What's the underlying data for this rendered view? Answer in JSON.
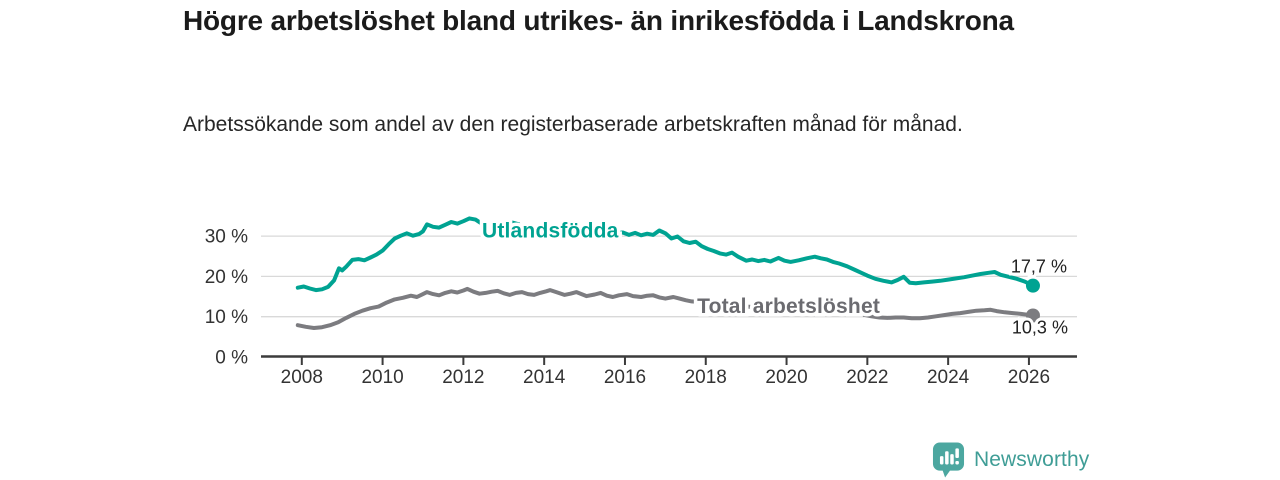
{
  "header": {
    "title": "Högre arbetslöshet bland utrikes- än inrikesfödda i Landskrona",
    "subtitle": "Arbetssökande som andel av den registerbaserade arbetskraften månad för månad."
  },
  "chart_data": {
    "type": "line",
    "title": "Högre arbetslöshet bland utrikes- än inrikesfödda i Landskrona",
    "subtitle": "Arbetssökande som andel av den registerbaserade arbetskraften månad för månad.",
    "xlabel": "",
    "ylabel": "",
    "xlim": [
      2006.99,
      2027.19
    ],
    "ylim": [
      0,
      36
    ],
    "grid": "horizontal-only",
    "legend_position": "inline-labels",
    "x_ticks": [
      2008,
      2010,
      2012,
      2014,
      2016,
      2018,
      2020,
      2022,
      2024,
      2026
    ],
    "x_tick_labels": [
      "2008",
      "2010",
      "2012",
      "2014",
      "2016",
      "2018",
      "2020",
      "2022",
      "2024",
      "2026"
    ],
    "y_ticks": [
      0,
      10,
      20,
      30
    ],
    "y_tick_labels": [
      "0 %",
      "10 %",
      "20 %",
      "30 %"
    ],
    "colors": {
      "grid": "#d9d9d9",
      "axis": "#3c3c3c",
      "tick_text": "#333333",
      "value_label_text": "#222222"
    },
    "series": [
      {
        "name": "Utlandsfödda",
        "color": "#00a392",
        "label_color": "#00a392",
        "inline_label": {
          "year": 2014.15,
          "value": 31.4
        },
        "end_label": "17,7 %",
        "end_value": 17.7,
        "end_label_offset": [
          34,
          -13
        ],
        "points": [
          [
            2007.9,
            17.2
          ],
          [
            2008.05,
            17.5
          ],
          [
            2008.2,
            17.0
          ],
          [
            2008.35,
            16.6
          ],
          [
            2008.5,
            16.8
          ],
          [
            2008.65,
            17.4
          ],
          [
            2008.8,
            19.0
          ],
          [
            2008.92,
            22.0
          ],
          [
            2009.0,
            21.5
          ],
          [
            2009.1,
            22.4
          ],
          [
            2009.25,
            24.1
          ],
          [
            2009.4,
            24.3
          ],
          [
            2009.55,
            24.0
          ],
          [
            2009.7,
            24.7
          ],
          [
            2009.85,
            25.4
          ],
          [
            2010.0,
            26.4
          ],
          [
            2010.15,
            28.0
          ],
          [
            2010.3,
            29.4
          ],
          [
            2010.45,
            30.1
          ],
          [
            2010.6,
            30.7
          ],
          [
            2010.75,
            30.1
          ],
          [
            2010.9,
            30.5
          ],
          [
            2011.0,
            31.2
          ],
          [
            2011.1,
            32.9
          ],
          [
            2011.25,
            32.3
          ],
          [
            2011.4,
            32.1
          ],
          [
            2011.55,
            32.8
          ],
          [
            2011.7,
            33.5
          ],
          [
            2011.85,
            33.1
          ],
          [
            2012.0,
            33.7
          ],
          [
            2012.15,
            34.4
          ],
          [
            2012.3,
            34.1
          ],
          [
            2012.45,
            33.1
          ],
          [
            2012.6,
            32.4
          ],
          [
            2012.8,
            32.7
          ],
          [
            2013.0,
            33.2
          ],
          [
            2013.2,
            33.4
          ],
          [
            2013.45,
            32.7
          ],
          [
            2013.7,
            32.1
          ],
          [
            2014.0,
            31.7
          ],
          [
            2014.3,
            31.3
          ],
          [
            2014.6,
            31.0
          ],
          [
            2014.9,
            30.8
          ],
          [
            2015.2,
            30.6
          ],
          [
            2015.5,
            30.4
          ],
          [
            2015.75,
            30.8
          ],
          [
            2015.95,
            30.9
          ],
          [
            2016.1,
            30.3
          ],
          [
            2016.25,
            30.8
          ],
          [
            2016.4,
            30.2
          ],
          [
            2016.55,
            30.6
          ],
          [
            2016.7,
            30.3
          ],
          [
            2016.85,
            31.4
          ],
          [
            2017.0,
            30.7
          ],
          [
            2017.15,
            29.4
          ],
          [
            2017.3,
            29.9
          ],
          [
            2017.45,
            28.7
          ],
          [
            2017.6,
            28.3
          ],
          [
            2017.75,
            28.6
          ],
          [
            2017.9,
            27.5
          ],
          [
            2018.05,
            26.8
          ],
          [
            2018.2,
            26.3
          ],
          [
            2018.35,
            25.7
          ],
          [
            2018.5,
            25.4
          ],
          [
            2018.65,
            25.9
          ],
          [
            2018.8,
            24.9
          ],
          [
            2019.0,
            23.9
          ],
          [
            2019.15,
            24.2
          ],
          [
            2019.3,
            23.8
          ],
          [
            2019.45,
            24.1
          ],
          [
            2019.6,
            23.7
          ],
          [
            2019.8,
            24.6
          ],
          [
            2019.95,
            23.9
          ],
          [
            2020.1,
            23.6
          ],
          [
            2020.3,
            24.0
          ],
          [
            2020.5,
            24.5
          ],
          [
            2020.7,
            24.9
          ],
          [
            2020.85,
            24.5
          ],
          [
            2021.0,
            24.2
          ],
          [
            2021.15,
            23.6
          ],
          [
            2021.3,
            23.2
          ],
          [
            2021.5,
            22.5
          ],
          [
            2021.7,
            21.6
          ],
          [
            2021.85,
            20.9
          ],
          [
            2022.0,
            20.2
          ],
          [
            2022.2,
            19.4
          ],
          [
            2022.4,
            18.9
          ],
          [
            2022.6,
            18.5
          ],
          [
            2022.75,
            19.1
          ],
          [
            2022.9,
            19.9
          ],
          [
            2023.05,
            18.4
          ],
          [
            2023.2,
            18.3
          ],
          [
            2023.4,
            18.5
          ],
          [
            2023.6,
            18.7
          ],
          [
            2023.8,
            18.9
          ],
          [
            2024.0,
            19.2
          ],
          [
            2024.2,
            19.5
          ],
          [
            2024.4,
            19.8
          ],
          [
            2024.6,
            20.2
          ],
          [
            2024.8,
            20.6
          ],
          [
            2025.0,
            20.9
          ],
          [
            2025.15,
            21.1
          ],
          [
            2025.3,
            20.4
          ],
          [
            2025.5,
            19.9
          ],
          [
            2025.7,
            19.4
          ],
          [
            2025.9,
            18.7
          ],
          [
            2026.1,
            17.7
          ]
        ]
      },
      {
        "name": "Total arbetslöshet",
        "color": "#7c7c80",
        "label_color": "#6b6b70",
        "inline_label": {
          "year": 2020.05,
          "value": 12.6
        },
        "end_label": "10,3 %",
        "end_value": 10.3,
        "end_label_offset": [
          35,
          18
        ],
        "points": [
          [
            2007.9,
            7.9
          ],
          [
            2008.1,
            7.5
          ],
          [
            2008.3,
            7.2
          ],
          [
            2008.5,
            7.4
          ],
          [
            2008.7,
            7.9
          ],
          [
            2008.9,
            8.6
          ],
          [
            2009.1,
            9.7
          ],
          [
            2009.3,
            10.7
          ],
          [
            2009.5,
            11.5
          ],
          [
            2009.7,
            12.1
          ],
          [
            2009.9,
            12.5
          ],
          [
            2010.1,
            13.5
          ],
          [
            2010.3,
            14.3
          ],
          [
            2010.5,
            14.7
          ],
          [
            2010.7,
            15.2
          ],
          [
            2010.85,
            14.9
          ],
          [
            2011.0,
            15.6
          ],
          [
            2011.1,
            16.1
          ],
          [
            2011.25,
            15.6
          ],
          [
            2011.4,
            15.3
          ],
          [
            2011.55,
            15.9
          ],
          [
            2011.7,
            16.3
          ],
          [
            2011.85,
            16.0
          ],
          [
            2012.0,
            16.5
          ],
          [
            2012.1,
            16.9
          ],
          [
            2012.25,
            16.2
          ],
          [
            2012.4,
            15.7
          ],
          [
            2012.55,
            15.9
          ],
          [
            2012.7,
            16.2
          ],
          [
            2012.85,
            16.4
          ],
          [
            2013.0,
            15.8
          ],
          [
            2013.15,
            15.4
          ],
          [
            2013.3,
            15.9
          ],
          [
            2013.45,
            16.1
          ],
          [
            2013.6,
            15.6
          ],
          [
            2013.75,
            15.4
          ],
          [
            2013.9,
            15.9
          ],
          [
            2014.05,
            16.3
          ],
          [
            2014.15,
            16.6
          ],
          [
            2014.3,
            16.1
          ],
          [
            2014.5,
            15.4
          ],
          [
            2014.65,
            15.7
          ],
          [
            2014.8,
            16.1
          ],
          [
            2015.05,
            15.1
          ],
          [
            2015.25,
            15.5
          ],
          [
            2015.4,
            15.9
          ],
          [
            2015.55,
            15.2
          ],
          [
            2015.7,
            14.9
          ],
          [
            2015.85,
            15.3
          ],
          [
            2016.05,
            15.6
          ],
          [
            2016.2,
            15.1
          ],
          [
            2016.4,
            14.9
          ],
          [
            2016.55,
            15.2
          ],
          [
            2016.7,
            15.3
          ],
          [
            2016.85,
            14.8
          ],
          [
            2017.0,
            14.5
          ],
          [
            2017.2,
            14.9
          ],
          [
            2017.35,
            14.5
          ],
          [
            2017.5,
            14.1
          ],
          [
            2017.65,
            13.8
          ],
          [
            2017.9,
            13.6
          ],
          [
            2018.2,
            13.2
          ],
          [
            2018.5,
            12.9
          ],
          [
            2018.9,
            12.6
          ],
          [
            2019.3,
            12.3
          ],
          [
            2019.7,
            12.1
          ],
          [
            2020.0,
            12.2
          ],
          [
            2020.3,
            12.8
          ],
          [
            2020.6,
            12.9
          ],
          [
            2020.9,
            12.5
          ],
          [
            2021.2,
            11.9
          ],
          [
            2021.5,
            11.3
          ],
          [
            2021.8,
            10.7
          ],
          [
            2022.1,
            10.1
          ],
          [
            2022.3,
            9.8
          ],
          [
            2022.5,
            9.7
          ],
          [
            2022.7,
            9.8
          ],
          [
            2022.9,
            9.8
          ],
          [
            2023.1,
            9.6
          ],
          [
            2023.3,
            9.6
          ],
          [
            2023.5,
            9.8
          ],
          [
            2023.7,
            10.1
          ],
          [
            2023.9,
            10.4
          ],
          [
            2024.1,
            10.7
          ],
          [
            2024.3,
            10.9
          ],
          [
            2024.5,
            11.2
          ],
          [
            2024.7,
            11.5
          ],
          [
            2024.9,
            11.6
          ],
          [
            2025.05,
            11.7
          ],
          [
            2025.2,
            11.4
          ],
          [
            2025.4,
            11.1
          ],
          [
            2025.6,
            10.9
          ],
          [
            2025.8,
            10.7
          ],
          [
            2026.1,
            10.3
          ]
        ]
      }
    ]
  },
  "footer": {
    "brand": "Newsworthy",
    "brand_color": "#3f9d96",
    "icon": "newsworthy-bar-chart-bubble-icon",
    "icon_color": "#4ca7a0",
    "icon_bars_color": "#ffffff"
  }
}
